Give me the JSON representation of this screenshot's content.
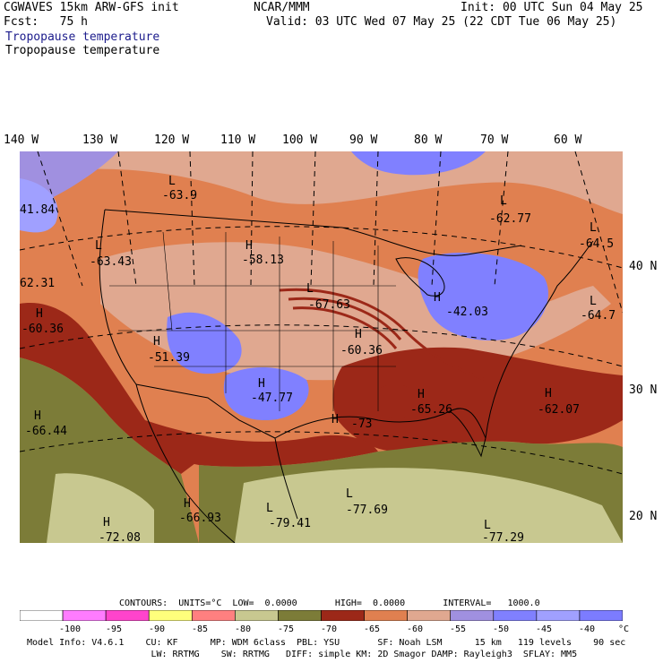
{
  "header": {
    "left_line1": "CGWAVES 15km ARW-GFS init",
    "center_line1": "NCAR/MMM",
    "right_line1": "Init: 00 UTC Sun 04 May 25",
    "left_line2": "Fcst:   75 h",
    "right_line2": "Valid: 03 UTC Wed 07 May 25 (22 CDT Tue 06 May 25)",
    "field_title_1": "Tropopause temperature",
    "field_title_2": "Tropopause temperature"
  },
  "axes": {
    "longitudes": [
      "140 W",
      "130 W",
      "120 W",
      "110 W",
      "100 W",
      "90 W",
      "80 W",
      "70 W",
      "60 W"
    ],
    "latitudes": [
      "40 N",
      "30 N",
      "20 N"
    ]
  },
  "map_labels": [
    {
      "type": "L",
      "value": "-63.9"
    },
    {
      "type": "L",
      "value": "-63.43"
    },
    {
      "type": "H",
      "value": "-58.13"
    },
    {
      "type": "H",
      "value": "-60.36"
    },
    {
      "type": "H",
      "value": "-51.39"
    },
    {
      "type": "L",
      "value": "-67.63"
    },
    {
      "type": "H",
      "value": "-47.77"
    },
    {
      "type": "H",
      "value": "-60.36"
    },
    {
      "type": "H",
      "value": "-42.03"
    },
    {
      "type": "L",
      "value": "-62.77"
    },
    {
      "type": "L",
      "value": "-64.5"
    },
    {
      "type": "L",
      "value": "-64.7"
    },
    {
      "type": "H",
      "value": "-65.26"
    },
    {
      "type": "H",
      "value": "-62.07"
    },
    {
      "type": "H",
      "value": "-66.44"
    },
    {
      "type": "H",
      "value": "-66.93"
    },
    {
      "type": "L",
      "value": "-79.41"
    },
    {
      "type": "L",
      "value": "-77.69"
    },
    {
      "type": "H",
      "value": "-72.08"
    },
    {
      "type": "L",
      "value": "-77.29"
    },
    {
      "type": "H",
      "value": "-73"
    },
    {
      "type": "",
      "value": "41.84"
    },
    {
      "type": "",
      "value": "62.31"
    }
  ],
  "contours_line": "CONTOURS:  UNITS=°C  LOW=  0.0000       HIGH=  0.0000       INTERVAL=   1000.0",
  "legend": {
    "colors": [
      "#ffffff",
      "#ff7cff",
      "#ff44cc",
      "#ffff7c",
      "#ff8080",
      "#c8c890",
      "#7c7c38",
      "#9c2818",
      "#e08050",
      "#e0a890",
      "#a090e0",
      "#8080ff",
      "#a0a0ff",
      "#7c7cff"
    ],
    "labels": [
      "-100",
      "-95",
      "-90",
      "-85",
      "-80",
      "-75",
      "-70",
      "-65",
      "-60",
      "-55",
      "-50",
      "-45",
      "-40",
      "°C"
    ]
  },
  "footer": {
    "line1": "Model Info: V4.6.1    CU: KF      MP: WDM 6class  PBL: YSU       SF: Noah LSM      15 km   119 levels    90 sec",
    "line2": "                       LW: RRTMG    SW: RRTMG   DIFF: simple KM: 2D Smagor DAMP: Rayleigh3  SFLAY: MM5"
  }
}
